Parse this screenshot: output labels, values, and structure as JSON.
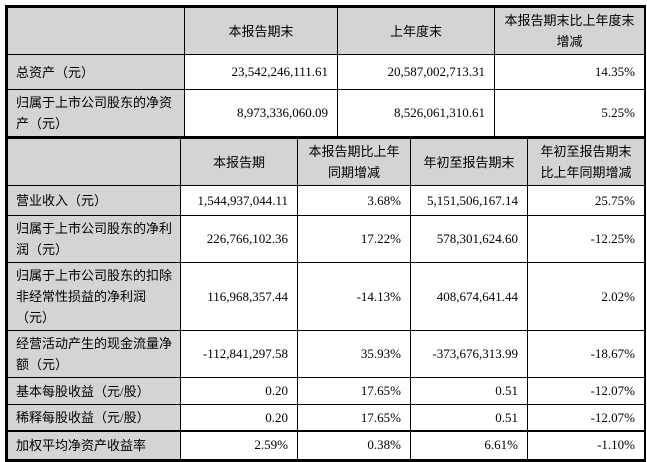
{
  "colors": {
    "header_bg": "#d4d4d4",
    "label_bg": "#d4d4d4",
    "cell_bg": "#ffffff",
    "border": "#000000"
  },
  "table1": {
    "headers": [
      "",
      "本报告期末",
      "上年度末",
      "本报告期末比上年度末增减"
    ],
    "rows": [
      {
        "label": "总资产（元）",
        "values": [
          "23,542,246,111.61",
          "20,587,002,713.31",
          "14.35%"
        ]
      },
      {
        "label": "归属于上市公司股东的净资产（元）",
        "values": [
          "8,973,336,060.09",
          "8,526,061,310.61",
          "5.25%"
        ]
      }
    ]
  },
  "table2": {
    "headers": [
      "",
      "本报告期",
      "本报告期比上年同期增减",
      "年初至报告期末",
      "年初至报告期末比上年同期增减"
    ],
    "rows": [
      {
        "label": "营业收入（元）",
        "values": [
          "1,544,937,044.11",
          "3.68%",
          "5,151,506,167.14",
          "25.75%"
        ]
      },
      {
        "label": "归属于上市公司股东的净利润（元）",
        "values": [
          "226,766,102.36",
          "17.22%",
          "578,301,624.60",
          "-12.25%"
        ]
      },
      {
        "label": "归属于上市公司股东的扣除非经常性损益的净利润（元）",
        "values": [
          "116,968,357.44",
          "-14.13%",
          "408,674,641.44",
          "2.02%"
        ]
      },
      {
        "label": "经营活动产生的现金流量净额（元）",
        "values": [
          "-112,841,297.58",
          "35.93%",
          "-373,676,313.99",
          "-18.67%"
        ]
      },
      {
        "label": "基本每股收益（元/股）",
        "values": [
          "0.20",
          "17.65%",
          "0.51",
          "-12.07%"
        ]
      },
      {
        "label": "稀释每股收益（元/股）",
        "values": [
          "0.20",
          "17.65%",
          "0.51",
          "-12.07%"
        ]
      },
      {
        "label": "加权平均净资产收益率",
        "values": [
          "2.59%",
          "0.38%",
          "6.61%",
          "-1.10%"
        ]
      }
    ]
  }
}
